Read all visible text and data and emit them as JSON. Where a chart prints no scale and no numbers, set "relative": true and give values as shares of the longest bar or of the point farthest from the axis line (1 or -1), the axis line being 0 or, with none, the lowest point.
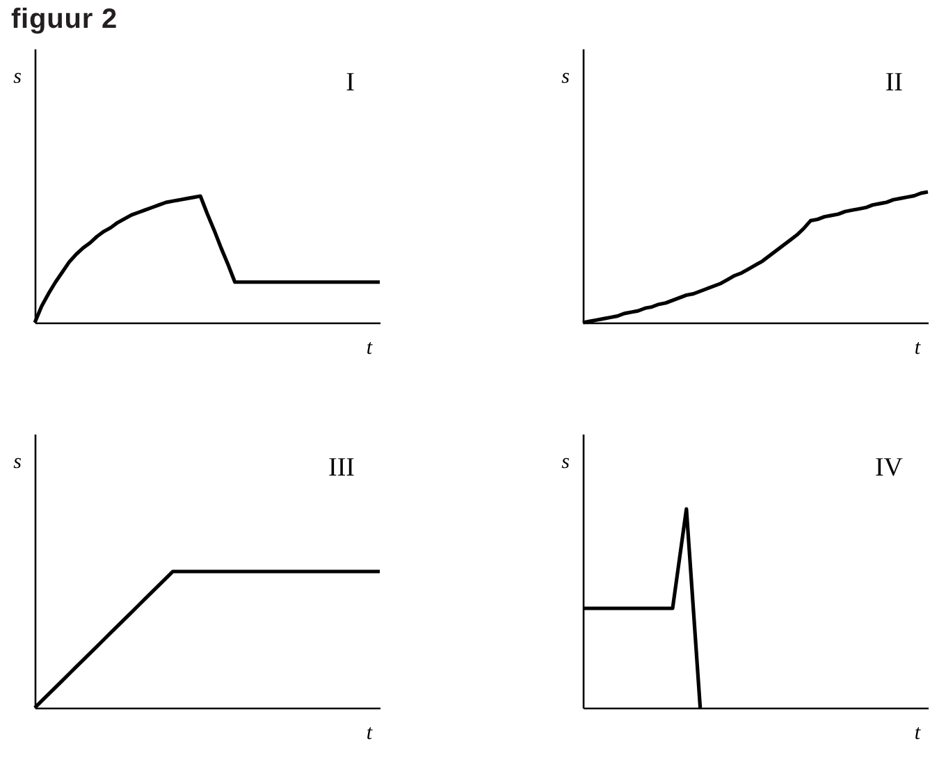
{
  "chart_data": [
    {
      "type": "other",
      "title": "figuur 2"
    },
    {
      "type": "line",
      "title": "I",
      "xlabel": "t",
      "ylabel": "s",
      "relative": true,
      "color": "#000000",
      "categories": [
        null,
        null,
        null,
        null,
        null,
        null,
        null,
        null,
        null,
        null,
        null,
        null,
        null,
        null,
        null,
        null,
        null,
        null,
        null,
        null,
        null,
        null,
        null,
        null,
        null,
        null,
        null,
        null,
        null,
        null,
        null,
        null,
        null,
        null,
        null,
        null,
        null,
        null,
        null,
        null,
        null,
        null,
        null,
        null,
        null,
        null,
        null,
        null,
        null,
        null,
        null
      ],
      "values": [
        0,
        0.13,
        0.23,
        0.32,
        0.4,
        0.48,
        0.54,
        0.59,
        0.63,
        0.68,
        0.72,
        0.75,
        0.79,
        0.82,
        0.85,
        0.87,
        0.89,
        0.91,
        0.93,
        0.95,
        0.96,
        0.97,
        0.98,
        0.99,
        1,
        0.86,
        0.73,
        0.59,
        0.46,
        0.32,
        0.32,
        0.32,
        0.32,
        0.32,
        0.32,
        0.32,
        0.32,
        0.32,
        0.32,
        0.32,
        0.32,
        0.32,
        0.32,
        0.32,
        0.32,
        0.32,
        0.32,
        0.32,
        0.32,
        0.32,
        0.32
      ]
    },
    {
      "type": "line",
      "title": "II",
      "xlabel": "t",
      "ylabel": "s",
      "relative": true,
      "color": "#000000",
      "categories": [
        null,
        null,
        null,
        null,
        null,
        null,
        null,
        null,
        null,
        null,
        null,
        null,
        null,
        null,
        null,
        null,
        null,
        null,
        null,
        null,
        null,
        null,
        null,
        null,
        null,
        null,
        null,
        null,
        null,
        null,
        null,
        null,
        null,
        null,
        null,
        null,
        null,
        null,
        null,
        null,
        null,
        null,
        null,
        null,
        null,
        null,
        null,
        null,
        null,
        null,
        null
      ],
      "values": [
        0,
        0.01,
        0.02,
        0.03,
        0.04,
        0.05,
        0.07,
        0.08,
        0.09,
        0.11,
        0.12,
        0.14,
        0.15,
        0.17,
        0.19,
        0.21,
        0.22,
        0.24,
        0.26,
        0.28,
        0.3,
        0.33,
        0.36,
        0.38,
        0.41,
        0.44,
        0.47,
        0.51,
        0.55,
        0.59,
        0.63,
        0.67,
        0.72,
        0.78,
        0.79,
        0.81,
        0.82,
        0.83,
        0.85,
        0.86,
        0.87,
        0.88,
        0.9,
        0.91,
        0.92,
        0.94,
        0.95,
        0.96,
        0.97,
        0.99,
        1
      ]
    },
    {
      "type": "line",
      "title": "III",
      "xlabel": "t",
      "ylabel": "s",
      "relative": true,
      "color": "#000000",
      "categories": [
        null,
        null,
        null,
        null,
        null,
        null,
        null,
        null,
        null,
        null,
        null,
        null,
        null,
        null,
        null,
        null,
        null,
        null,
        null,
        null,
        null,
        null,
        null,
        null,
        null,
        null,
        null,
        null,
        null,
        null,
        null,
        null,
        null,
        null,
        null,
        null,
        null,
        null,
        null,
        null,
        null,
        null,
        null,
        null,
        null,
        null,
        null,
        null,
        null,
        null,
        null
      ],
      "values": [
        0,
        0.05,
        0.1,
        0.15,
        0.2,
        0.25,
        0.3,
        0.35,
        0.4,
        0.45,
        0.5,
        0.55,
        0.6,
        0.65,
        0.7,
        0.75,
        0.8,
        0.85,
        0.9,
        0.95,
        1,
        1,
        1,
        1,
        1,
        1,
        1,
        1,
        1,
        1,
        1,
        1,
        1,
        1,
        1,
        1,
        1,
        1,
        1,
        1,
        1,
        1,
        1,
        1,
        1,
        1,
        1,
        1,
        1,
        1,
        1
      ]
    },
    {
      "type": "line",
      "title": "IV",
      "xlabel": "t",
      "ylabel": "s",
      "relative": true,
      "color": "#000000",
      "categories": [
        null,
        null,
        null,
        null,
        null,
        null,
        null,
        null,
        null,
        null,
        null,
        null,
        null,
        null,
        null,
        null,
        null,
        null,
        null,
        null,
        null,
        null,
        null,
        null,
        null,
        null,
        null,
        null,
        null,
        null,
        null,
        null,
        null,
        null,
        null,
        null,
        null,
        null,
        null,
        null,
        null,
        null,
        null,
        null,
        null,
        null,
        null,
        null,
        null,
        null,
        null
      ],
      "values": [
        0.5,
        0.5,
        0.5,
        0.5,
        0.5,
        0.5,
        0.5,
        0.5,
        0.5,
        0.5,
        0.5,
        0.5,
        0.5,
        0.5,
        0.75,
        1,
        0.5,
        0,
        null,
        null,
        null,
        null,
        null,
        null,
        null,
        null,
        null,
        null,
        null,
        null,
        null,
        null,
        null,
        null,
        null,
        null,
        null,
        null,
        null,
        null,
        null,
        null,
        null,
        null,
        null,
        null,
        null,
        null,
        null,
        null,
        null
      ]
    }
  ]
}
